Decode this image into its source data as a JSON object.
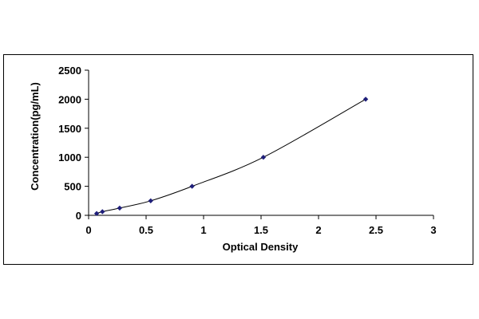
{
  "chart_data": {
    "type": "scatter",
    "title": "",
    "xlabel": "Optical Density",
    "ylabel": "Concentration(pg/mL)",
    "xlim": [
      0,
      3
    ],
    "ylim": [
      0,
      2500
    ],
    "x_ticks": [
      0,
      0.5,
      1,
      1.5,
      2,
      2.5,
      3
    ],
    "x_tick_labels": [
      "0",
      "0.5",
      "1",
      "1.5",
      "2",
      "2.5",
      "3"
    ],
    "y_ticks": [
      0,
      500,
      1000,
      1500,
      2000,
      2500
    ],
    "y_tick_labels": [
      "0",
      "500",
      "1000",
      "1500",
      "2000",
      "2500"
    ],
    "grid": false,
    "legend": "none",
    "series": [
      {
        "points": [
          {
            "x": 0.07,
            "y": 31.2
          },
          {
            "x": 0.12,
            "y": 62.5
          },
          {
            "x": 0.27,
            "y": 125
          },
          {
            "x": 0.54,
            "y": 250
          },
          {
            "x": 0.9,
            "y": 500
          },
          {
            "x": 1.52,
            "y": 1000
          },
          {
            "x": 2.41,
            "y": 2000
          }
        ],
        "marker_color": "#1f1f7a",
        "line_color": "#000000"
      }
    ]
  }
}
